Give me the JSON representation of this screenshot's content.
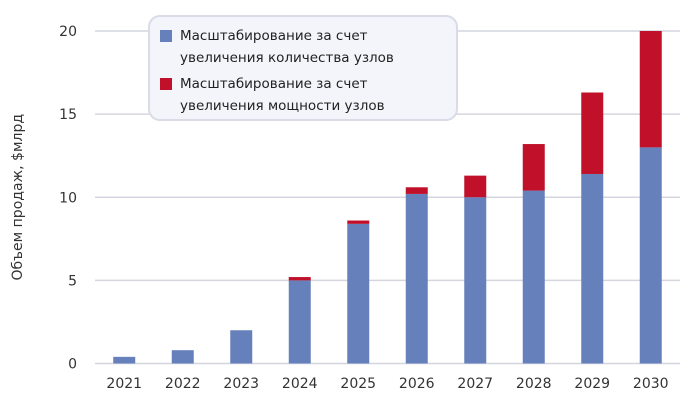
{
  "chart_data": {
    "type": "bar",
    "stacked": true,
    "categories": [
      "2021",
      "2022",
      "2023",
      "2024",
      "2025",
      "2026",
      "2027",
      "2028",
      "2029",
      "2030"
    ],
    "series": [
      {
        "name": "Масштабирование за счет увеличения количества узлов",
        "color": "#6680bc",
        "values": [
          0.4,
          0.8,
          2.0,
          5.0,
          8.4,
          10.2,
          10.0,
          10.4,
          11.4,
          13.0
        ]
      },
      {
        "name": "Масштабирование за счет увеличения мощности узлов",
        "color": "#c0102a",
        "values": [
          0,
          0,
          0,
          0.2,
          0.2,
          0.4,
          1.3,
          2.8,
          4.9,
          7.0
        ]
      }
    ],
    "ylabel": "Объем продаж, $млрд",
    "xlabel": "",
    "ylim": [
      0,
      20
    ],
    "yticks": [
      0,
      5,
      10,
      15,
      20
    ],
    "grid": true,
    "legend_position": "top-left"
  }
}
